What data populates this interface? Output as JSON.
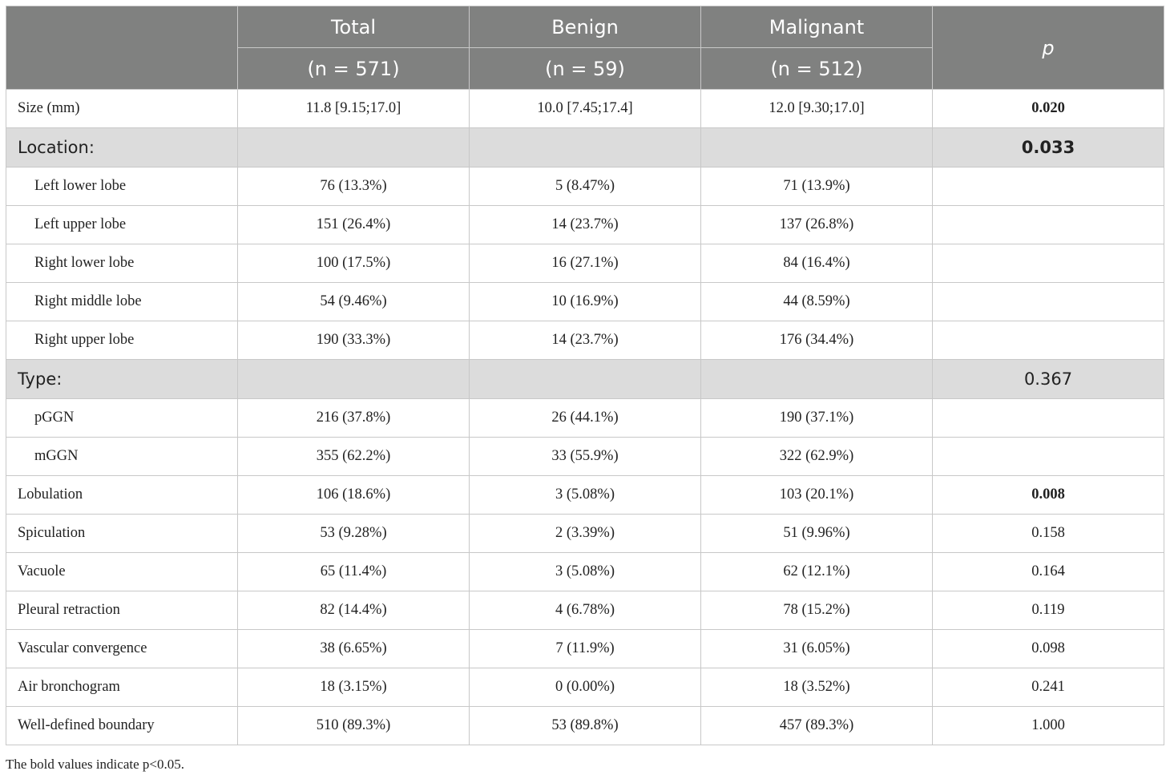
{
  "header": {
    "row1": [
      "",
      "Total",
      "Benign",
      "Malignant"
    ],
    "row2": [
      "(n = 571)",
      "(n = 59)",
      "(n = 512)"
    ],
    "p_label": "p"
  },
  "rows": [
    {
      "label": "Size (mm)",
      "total": "11.8 [9.15;17.0]",
      "benign": "10.0 [7.45;17.4]",
      "malignant": "12.0 [9.30;17.0]",
      "p": "0.020",
      "p_bold": true,
      "kind": "main"
    },
    {
      "label": "Location:",
      "total": "",
      "benign": "",
      "malignant": "",
      "p": "0.033",
      "p_bold": true,
      "kind": "section"
    },
    {
      "label": "Left lower lobe",
      "total": "76 (13.3%)",
      "benign": "5 (8.47%)",
      "malignant": "71 (13.9%)",
      "p": "",
      "kind": "sub"
    },
    {
      "label": "Left upper lobe",
      "total": "151 (26.4%)",
      "benign": "14 (23.7%)",
      "malignant": "137 (26.8%)",
      "p": "",
      "kind": "sub"
    },
    {
      "label": "Right lower lobe",
      "total": "100 (17.5%)",
      "benign": "16 (27.1%)",
      "malignant": "84 (16.4%)",
      "p": "",
      "kind": "sub"
    },
    {
      "label": "Right middle lobe",
      "total": "54 (9.46%)",
      "benign": "10 (16.9%)",
      "malignant": "44 (8.59%)",
      "p": "",
      "kind": "sub"
    },
    {
      "label": "Right upper lobe",
      "total": "190 (33.3%)",
      "benign": "14 (23.7%)",
      "malignant": "176 (34.4%)",
      "p": "",
      "kind": "sub"
    },
    {
      "label": "Type:",
      "total": "",
      "benign": "",
      "malignant": "",
      "p": "0.367",
      "p_bold": false,
      "kind": "section"
    },
    {
      "label": "pGGN",
      "total": "216 (37.8%)",
      "benign": "26 (44.1%)",
      "malignant": "190 (37.1%)",
      "p": "",
      "kind": "sub"
    },
    {
      "label": "mGGN",
      "total": "355 (62.2%)",
      "benign": "33 (55.9%)",
      "malignant": "322 (62.9%)",
      "p": "",
      "kind": "sub"
    },
    {
      "label": "Lobulation",
      "total": "106 (18.6%)",
      "benign": "3 (5.08%)",
      "malignant": "103 (20.1%)",
      "p": "0.008",
      "p_bold": true,
      "kind": "main"
    },
    {
      "label": "Spiculation",
      "total": "53 (9.28%)",
      "benign": "2 (3.39%)",
      "malignant": "51 (9.96%)",
      "p": "0.158",
      "p_bold": false,
      "kind": "main"
    },
    {
      "label": "Vacuole",
      "total": "65 (11.4%)",
      "benign": "3 (5.08%)",
      "malignant": "62 (12.1%)",
      "p": "0.164",
      "p_bold": false,
      "kind": "main"
    },
    {
      "label": "Pleural retraction",
      "total": "82 (14.4%)",
      "benign": "4 (6.78%)",
      "malignant": "78 (15.2%)",
      "p": "0.119",
      "p_bold": false,
      "kind": "main"
    },
    {
      "label": "Vascular convergence",
      "total": "38 (6.65%)",
      "benign": "7 (11.9%)",
      "malignant": "31 (6.05%)",
      "p": "0.098",
      "p_bold": false,
      "kind": "main"
    },
    {
      "label": "Air bronchogram",
      "total": "18 (3.15%)",
      "benign": "0 (0.00%)",
      "malignant": "18 (3.52%)",
      "p": "0.241",
      "p_bold": false,
      "kind": "main"
    },
    {
      "label": "Well-defined boundary",
      "total": "510 (89.3%)",
      "benign": "53 (89.8%)",
      "malignant": "457 (89.3%)",
      "p": "1.000",
      "p_bold": false,
      "kind": "main"
    }
  ],
  "footnote": "The bold values indicate p<0.05."
}
